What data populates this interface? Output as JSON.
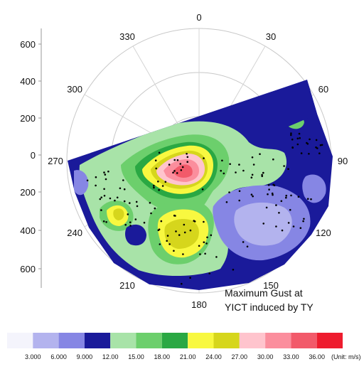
{
  "chart_data": {
    "type": "heatmap",
    "projection": "polar",
    "caption_line1": "Maximum Gust at",
    "caption_line2": "YICT induced by TY",
    "angle_ticks": [
      "0",
      "30",
      "60",
      "90",
      "120",
      "150",
      "180",
      "210",
      "240",
      "270",
      "300",
      "330"
    ],
    "y_ticks": [
      "600",
      "400",
      "200",
      "0",
      "200",
      "400",
      "600"
    ],
    "colorbar": {
      "levels": [
        "3.000",
        "6.000",
        "9.000",
        "12.00",
        "15.00",
        "18.00",
        "21.00",
        "24.00",
        "27.00",
        "30.00",
        "33.00",
        "36.00"
      ],
      "unit": "(Unit: m/s)",
      "colors": [
        "#f4f4fc",
        "#b3b3ee",
        "#8686e4",
        "#1a1a9a",
        "#a8e3a8",
        "#6ccf6c",
        "#2aa843",
        "#f8f840",
        "#d6d61c",
        "#ffc4cd",
        "#fb8e9d",
        "#f25a6a",
        "#ee1c2e"
      ]
    }
  }
}
